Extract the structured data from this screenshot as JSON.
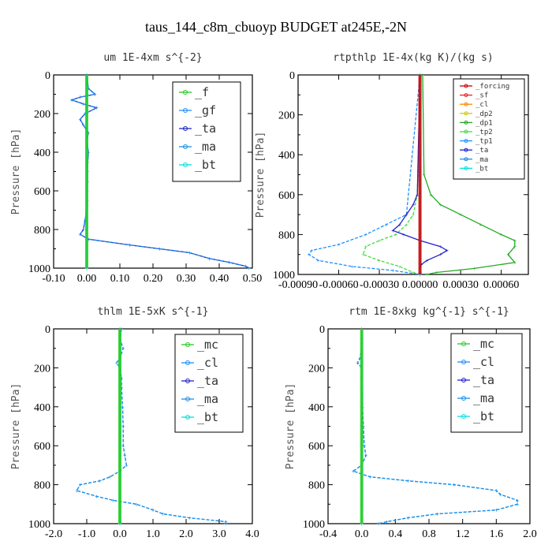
{
  "figure": {
    "title": "taus_144_c8m_cbuoyp  BUDGET at245E,-2N",
    "colors": {
      "f": "#22cc22",
      "gf": "#1e90ff",
      "ta": "#2222cc",
      "ma": "#1890e8",
      "bt": "#00e0e0",
      "mc": "#22cc22",
      "cl": "#1e90ff",
      "forcing": "#cc0000",
      "sf": "#ee2222",
      "cl2": "#ff8800",
      "dp2": "#cccc00",
      "dp1": "#22aa22",
      "tp2": "#44dd44",
      "tp1": "#1e90ff",
      "frame": "#000000"
    }
  },
  "chart_data": [
    {
      "id": "um",
      "type": "line",
      "title": "um   1E-4xm s^{-2}",
      "ylabel": "Pressure [hPa]",
      "xlabel": "",
      "xlim": [
        -0.1,
        0.5
      ],
      "ylim": [
        1000,
        0
      ],
      "xticks": [
        "-0.10",
        "0.00",
        "0.10",
        "0.20",
        "0.30",
        "0.40",
        "0.50"
      ],
      "yticks": [
        "0",
        "200",
        "400",
        "600",
        "800",
        "1000"
      ],
      "legend": {
        "position": "top-right",
        "entries": [
          "_f",
          "_gf",
          "_ta",
          "_ma",
          "_bt"
        ]
      },
      "series": [
        {
          "name": "_f",
          "color_key": "f",
          "y": [
            0,
            100,
            200,
            300,
            400,
            500,
            600,
            700,
            800,
            900,
            1000
          ],
          "x": [
            0,
            0,
            0,
            0,
            0,
            0,
            0,
            0,
            0,
            0,
            0
          ]
        },
        {
          "name": "_gf",
          "color_key": "gf",
          "y": [
            0,
            100,
            200,
            300,
            400,
            500,
            600,
            700,
            800,
            900,
            1000
          ],
          "x": [
            0,
            0,
            0,
            0,
            0,
            0,
            0,
            0,
            0,
            0,
            0
          ]
        },
        {
          "name": "_ta",
          "color_key": "ta",
          "y": [
            0,
            70,
            100,
            115,
            130,
            150,
            170,
            200,
            230,
            260,
            300,
            340,
            400,
            450,
            500,
            550,
            600,
            650,
            700,
            750,
            800,
            825,
            850,
            880,
            900,
            920,
            950,
            970,
            990,
            1000
          ],
          "x": [
            0.0,
            0.005,
            0.025,
            -0.02,
            -0.045,
            -0.01,
            0.03,
            -0.005,
            -0.02,
            -0.01,
            0.005,
            0.0,
            0.005,
            0.003,
            0.002,
            0.002,
            0.001,
            0.001,
            0.0,
            -0.005,
            -0.01,
            -0.02,
            0.005,
            0.13,
            0.22,
            0.31,
            0.37,
            0.43,
            0.48,
            0.49
          ]
        },
        {
          "name": "_ma",
          "color_key": "ma",
          "y": [
            0,
            70,
            100,
            115,
            130,
            150,
            170,
            200,
            230,
            260,
            300,
            340,
            400,
            450,
            500,
            550,
            600,
            650,
            700,
            750,
            800,
            825,
            850,
            880,
            900,
            920,
            950,
            970,
            990,
            1000
          ],
          "x": [
            0.0,
            0.005,
            0.025,
            -0.02,
            -0.045,
            -0.01,
            0.03,
            -0.005,
            -0.02,
            -0.01,
            0.005,
            0.0,
            0.005,
            0.003,
            0.002,
            0.002,
            0.001,
            0.001,
            0.0,
            -0.005,
            -0.01,
            -0.02,
            0.005,
            0.13,
            0.22,
            0.31,
            0.37,
            0.43,
            0.48,
            0.49
          ]
        },
        {
          "name": "_bt",
          "color_key": "bt",
          "y": [
            0,
            100,
            200,
            300,
            400,
            500,
            600,
            700,
            800,
            900,
            1000
          ],
          "x": [
            0,
            0,
            0,
            0,
            0,
            0,
            0,
            0,
            0,
            0,
            0
          ]
        }
      ]
    },
    {
      "id": "rtpthlp",
      "type": "line",
      "title": "rtpthlp   1E-4x(kg K)/(kg s)",
      "ylabel": "Pressure [hPa]",
      "xlabel": "",
      "xlim": [
        -0.0009,
        0.0008
      ],
      "ylim": [
        1000,
        0
      ],
      "xticks": [
        "-0.00090",
        "-0.00060",
        "-0.00030",
        "0.00000",
        "0.00030",
        "0.00060"
      ],
      "yticks": [
        "0",
        "200",
        "400",
        "600",
        "800",
        "1000"
      ],
      "legend": {
        "position": "top-right",
        "entries": [
          "_forcing",
          "_sf",
          "_cl",
          "_dp2",
          "_dp1",
          "_tp2",
          "_tp1",
          "_ta",
          "_ma",
          "_bt"
        ]
      },
      "series": [
        {
          "name": "_forcing",
          "color_key": "forcing",
          "y": [
            0,
            200,
            400,
            600,
            800,
            1000
          ],
          "x": [
            0,
            0,
            0,
            0,
            0,
            0
          ]
        },
        {
          "name": "_sf",
          "color_key": "sf",
          "y": [
            0,
            200,
            400,
            600,
            800,
            1000
          ],
          "x": [
            0,
            0,
            0,
            0,
            0,
            0
          ]
        },
        {
          "name": "_cl",
          "color_key": "cl2",
          "y": [
            0,
            200,
            400,
            600,
            800,
            1000
          ],
          "x": [
            0,
            0,
            0,
            0,
            0,
            0
          ]
        },
        {
          "name": "_dp2",
          "color_key": "dp2",
          "y": [
            0,
            200,
            400,
            600,
            800,
            1000
          ],
          "x": [
            0,
            0,
            0,
            0,
            0,
            0
          ]
        },
        {
          "name": "_dp1",
          "color_key": "dp1",
          "y": [
            0,
            500,
            600,
            650,
            700,
            750,
            800,
            830,
            860,
            900,
            940,
            970,
            990,
            1000
          ],
          "x": [
            2e-05,
            3e-05,
            8e-05,
            0.00015,
            0.0003,
            0.00045,
            0.0006,
            0.0007,
            0.0007,
            0.00065,
            0.0007,
            0.0004,
            0.00012,
            5e-05
          ]
        },
        {
          "name": "_tp2",
          "color_key": "tp2",
          "y": [
            0,
            600,
            700,
            750,
            800,
            830,
            860,
            900,
            930,
            960,
            990,
            1000
          ],
          "x": [
            0.0,
            -2e-05,
            -5e-05,
            -0.0001,
            -0.00018,
            -0.0003,
            -0.0004,
            -0.00042,
            -0.0003,
            -0.00015,
            -5e-05,
            0.0
          ]
        },
        {
          "name": "_tp1",
          "color_key": "tp1",
          "y": [
            0,
            700,
            750,
            800,
            850,
            880,
            900,
            930,
            960,
            980,
            1000
          ],
          "x": [
            0.0,
            -0.0001,
            -0.00025,
            -0.0004,
            -0.0006,
            -0.0008,
            -0.00082,
            -0.00075,
            -0.0005,
            -0.0002,
            0.0
          ]
        },
        {
          "name": "_ta",
          "color_key": "ta",
          "y": [
            0,
            600,
            650,
            700,
            750,
            780,
            800,
            830,
            860,
            880,
            900,
            930,
            950,
            970,
            990,
            1000
          ],
          "x": [
            0.0,
            -2e-05,
            -5e-05,
            -0.0001,
            -0.00015,
            -0.0002,
            -0.00012,
            0.0,
            0.00015,
            0.0002,
            0.00015,
            5e-05,
            1e-05,
            0.0,
            0.0,
            0.0
          ]
        },
        {
          "name": "_ma",
          "color_key": "ma",
          "y": [
            0,
            200,
            400,
            600,
            800,
            1000
          ],
          "x": [
            0,
            0,
            0,
            0,
            0,
            0
          ]
        },
        {
          "name": "_bt",
          "color_key": "bt",
          "y": [
            0,
            200,
            400,
            600,
            800,
            1000
          ],
          "x": [
            0,
            0,
            0,
            0,
            0,
            0
          ]
        }
      ]
    },
    {
      "id": "thlm",
      "type": "line",
      "title": "thlm   1E-5xK s^{-1}",
      "ylabel": "Pressure [hPa]",
      "xlabel": "",
      "xlim": [
        -2.0,
        4.0
      ],
      "ylim": [
        1000,
        0
      ],
      "xticks": [
        "-2.0",
        "-1.0",
        "0.0",
        "1.0",
        "2.0",
        "3.0",
        "4.0"
      ],
      "yticks": [
        "0",
        "200",
        "400",
        "600",
        "800",
        "1000"
      ],
      "legend": {
        "position": "top-right",
        "entries": [
          "_mc",
          "_cl",
          "_ta",
          "_ma",
          "_bt"
        ]
      },
      "series": [
        {
          "name": "_mc",
          "color_key": "mc",
          "y": [
            0,
            100,
            200,
            300,
            400,
            500,
            600,
            700,
            800,
            900,
            1000
          ],
          "x": [
            0,
            0,
            0,
            0,
            0,
            0,
            0,
            0,
            0,
            0,
            0
          ]
        },
        {
          "name": "_cl",
          "color_key": "cl",
          "y": [
            0,
            50,
            100,
            150,
            175,
            200,
            250,
            300,
            400,
            500,
            600,
            650,
            700,
            730,
            760,
            780,
            800,
            830,
            860,
            880,
            900,
            930,
            950,
            970,
            990,
            1000
          ],
          "x": [
            0.05,
            0.0,
            0.1,
            0.0,
            -0.1,
            0.0,
            0.05,
            0.05,
            0.08,
            0.1,
            0.1,
            0.15,
            0.2,
            0.0,
            -0.3,
            -0.6,
            -1.2,
            -1.3,
            -0.7,
            -0.2,
            0.5,
            1.0,
            1.3,
            2.1,
            3.2,
            3.2
          ]
        },
        {
          "name": "_ta",
          "color_key": "ta",
          "y": [
            0,
            100,
            200,
            300,
            400,
            500,
            600,
            700,
            800,
            900,
            1000
          ],
          "x": [
            0,
            0,
            0,
            0,
            0,
            0,
            0,
            0,
            0,
            0,
            0
          ]
        },
        {
          "name": "_ma",
          "color_key": "ma",
          "y": [
            0,
            50,
            100,
            150,
            175,
            200,
            250,
            300,
            400,
            500,
            600,
            650,
            700,
            730,
            760,
            780,
            800,
            830,
            860,
            880,
            900,
            930,
            950,
            970,
            990,
            1000
          ],
          "x": [
            0.05,
            0.0,
            0.1,
            0.0,
            -0.1,
            0.0,
            0.05,
            0.05,
            0.08,
            0.1,
            0.1,
            0.15,
            0.2,
            0.0,
            -0.3,
            -0.6,
            -1.2,
            -1.3,
            -0.7,
            -0.2,
            0.5,
            1.0,
            1.3,
            2.1,
            3.2,
            3.2
          ]
        },
        {
          "name": "_bt",
          "color_key": "bt",
          "y": [
            0,
            100,
            200,
            300,
            400,
            500,
            600,
            700,
            800,
            900,
            1000
          ],
          "x": [
            0,
            0,
            0,
            0,
            0,
            0,
            0,
            0,
            0,
            0,
            0
          ]
        }
      ]
    },
    {
      "id": "rtm",
      "type": "line",
      "title": "rtm   1E-8xkg kg^{-1} s^{-1}",
      "ylabel": "Pressure [hPa]",
      "xlabel": "",
      "xlim": [
        -0.4,
        2.0
      ],
      "ylim": [
        1000,
        0
      ],
      "xticks": [
        "-0.4",
        "0.0",
        "0.4",
        "0.8",
        "1.2",
        "1.6",
        "2.0"
      ],
      "yticks": [
        "0",
        "200",
        "400",
        "600",
        "800",
        "1000"
      ],
      "legend": {
        "position": "top-right",
        "entries": [
          "_mc",
          "_cl",
          "_ta",
          "_ma",
          "_bt"
        ]
      },
      "series": [
        {
          "name": "_mc",
          "color_key": "mc",
          "y": [
            0,
            100,
            200,
            300,
            400,
            500,
            600,
            700,
            800,
            900,
            1000
          ],
          "x": [
            0,
            0,
            0,
            0,
            0,
            0,
            0,
            0,
            0,
            0,
            0
          ]
        },
        {
          "name": "_cl",
          "color_key": "cl",
          "y": [
            0,
            50,
            100,
            150,
            175,
            200,
            250,
            300,
            400,
            500,
            600,
            650,
            700,
            730,
            760,
            780,
            800,
            830,
            850,
            880,
            900,
            930,
            950,
            970,
            990,
            1000
          ],
          "x": [
            0.0,
            0.0,
            0.0,
            -0.02,
            -0.05,
            0.0,
            0.0,
            0.0,
            0.01,
            0.02,
            0.03,
            0.05,
            0.0,
            -0.1,
            0.1,
            0.55,
            1.1,
            1.6,
            1.65,
            1.85,
            1.85,
            1.6,
            0.9,
            0.55,
            0.3,
            0.2
          ]
        },
        {
          "name": "_ta",
          "color_key": "ta",
          "y": [
            0,
            100,
            200,
            300,
            400,
            500,
            600,
            700,
            800,
            900,
            1000
          ],
          "x": [
            0,
            0,
            0,
            0,
            0,
            0,
            0,
            0,
            0,
            0,
            0
          ]
        },
        {
          "name": "_ma",
          "color_key": "ma",
          "y": [
            0,
            50,
            100,
            150,
            175,
            200,
            250,
            300,
            400,
            500,
            600,
            650,
            700,
            730,
            760,
            780,
            800,
            830,
            850,
            880,
            900,
            930,
            950,
            970,
            990,
            1000
          ],
          "x": [
            0.0,
            0.0,
            0.0,
            -0.02,
            -0.05,
            0.0,
            0.0,
            0.0,
            0.01,
            0.02,
            0.03,
            0.05,
            0.0,
            -0.1,
            0.1,
            0.55,
            1.1,
            1.6,
            1.65,
            1.85,
            1.85,
            1.6,
            0.9,
            0.55,
            0.3,
            0.2
          ]
        },
        {
          "name": "_bt",
          "color_key": "bt",
          "y": [
            0,
            100,
            200,
            300,
            400,
            500,
            600,
            700,
            800,
            900,
            1000
          ],
          "x": [
            0,
            0,
            0,
            0,
            0,
            0,
            0,
            0,
            0,
            0,
            0
          ]
        }
      ]
    }
  ]
}
